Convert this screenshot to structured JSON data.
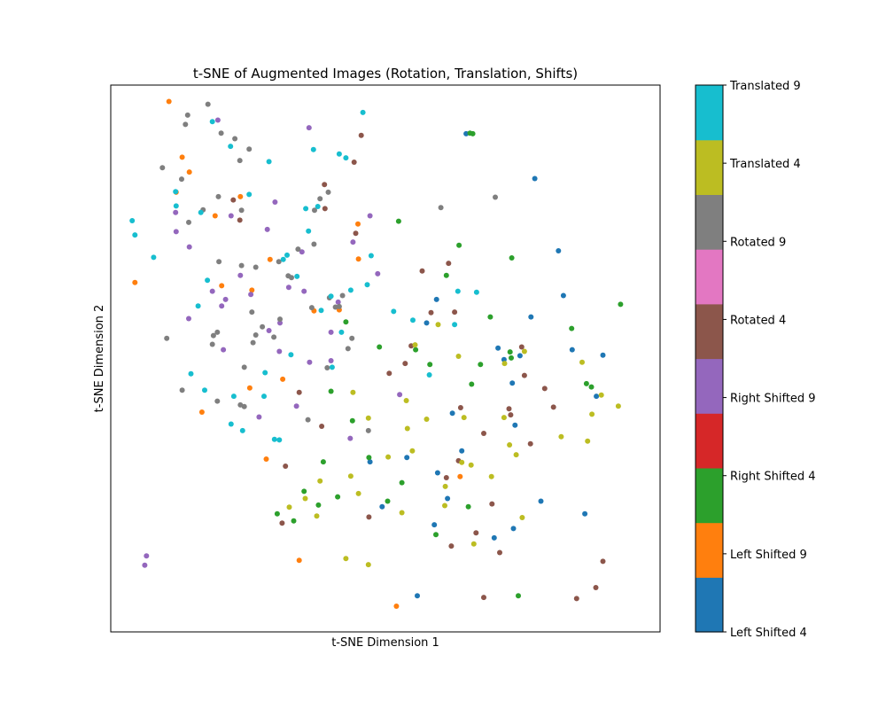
{
  "chart_data": {
    "type": "scatter",
    "title": "t-SNE of Augmented Images (Rotation, Translation, Shifts)",
    "xlabel": "t-SNE Dimension 1",
    "ylabel": "t-SNE Dimension 2",
    "xlim": [
      0,
      100
    ],
    "ylim": [
      0,
      100
    ],
    "x_ticks_visible": false,
    "y_ticks_visible": false,
    "grid": false,
    "colorbar": {
      "labels": [
        "Left Shifted 4",
        "Left Shifted 9",
        "Right Shifted 4",
        "Right Shifted 9",
        "Rotated 4",
        "Rotated 9",
        "Translated 4",
        "Translated 9"
      ],
      "colors": [
        "#1f77b4",
        "#ff7f0e",
        "#2ca02c",
        "#d62728",
        "#9467bd",
        "#8c564b",
        "#e377c2",
        "#7f7f7f",
        "#bcbd22",
        "#17becf"
      ]
    },
    "series": [
      {
        "name": "Left Shifted 4",
        "color": "#1f77b4",
        "x": [
          64.7,
          77.2,
          81.5,
          82.4,
          76.5,
          84.0,
          89.6,
          71.6,
          88.4,
          74.5,
          59.3,
          57.5,
          70.5,
          62.2,
          73.1,
          73.6,
          63.9,
          53.9,
          59.5,
          47.2,
          61.3,
          78.3,
          86.3,
          69.8,
          73.3,
          58.9,
          49.4,
          55.8
        ],
        "y": [
          91.1,
          82.9,
          69.7,
          61.5,
          57.6,
          51.6,
          50.6,
          49.8,
          43.1,
          50.5,
          60.8,
          56.5,
          51.9,
          40.0,
          45.5,
          37.8,
          33.1,
          31.9,
          29.1,
          31.1,
          24.4,
          23.9,
          21.6,
          17.2,
          18.9,
          19.6,
          22.9,
          6.6
        ]
      },
      {
        "name": "Left Shifted 9",
        "color": "#ff7f0e",
        "x": [
          4.4,
          13.0,
          20.2,
          19.0,
          23.6,
          45.0,
          29.0,
          14.3,
          11.9,
          25.7,
          31.3,
          41.6,
          37.0,
          25.3,
          10.6,
          16.6,
          28.3,
          45.1,
          63.6,
          34.3,
          52.0
        ],
        "y": [
          63.9,
          86.8,
          63.3,
          76.1,
          79.6,
          74.6,
          68.1,
          84.1,
          80.4,
          62.5,
          46.2,
          58.9,
          58.7,
          44.6,
          97.0,
          40.2,
          31.6,
          68.2,
          28.4,
          13.1,
          4.7
        ]
      },
      {
        "name": "Right Shifted 4",
        "color": "#2ca02c",
        "x": [
          65.9,
          52.4,
          65.4,
          63.4,
          73.0,
          61.1,
          92.8,
          69.1,
          55.5,
          48.9,
          40.1,
          42.8,
          72.7,
          83.9,
          72.9,
          86.6,
          65.7,
          67.3,
          87.5,
          58.1,
          44.0,
          35.2,
          38.7,
          53.0,
          37.8,
          47.0,
          30.3,
          33.3,
          50.4,
          74.2,
          65.1,
          59.2,
          41.3
        ],
        "y": [
          91.1,
          75.1,
          91.2,
          70.7,
          68.4,
          65.2,
          59.9,
          57.6,
          51.6,
          52.1,
          44.0,
          56.7,
          51.2,
          55.5,
          50.1,
          45.4,
          45.3,
          48.9,
          44.8,
          48.9,
          38.6,
          25.7,
          31.1,
          27.3,
          23.2,
          31.9,
          21.6,
          20.3,
          23.9,
          6.6,
          22.9,
          17.8,
          24.7
        ]
      },
      {
        "name": "Right Shifted 9",
        "color": "#9467bd",
        "x": [
          6.5,
          6.2,
          11.9,
          21.9,
          14.3,
          20.9,
          19.5,
          34.8,
          28.5,
          35.2,
          29.9,
          41.4,
          48.6,
          11.8,
          14.2,
          25.5,
          32.4,
          30.8,
          40.1,
          40.1,
          18.5,
          20.2,
          28.8,
          47.2,
          36.2,
          52.6,
          33.8,
          36.1,
          23.6,
          44.1,
          43.6,
          27.0,
          20.5,
          30.7
        ],
        "y": [
          13.9,
          12.2,
          73.2,
          76.1,
          70.4,
          60.8,
          93.6,
          69.5,
          73.6,
          62.3,
          78.6,
          60.3,
          65.5,
          76.7,
          57.3,
          61.7,
          63.0,
          56.5,
          54.8,
          49.6,
          62.3,
          59.6,
          55.1,
          76.1,
          49.3,
          43.4,
          41.3,
          92.2,
          65.2,
          71.3,
          35.4,
          39.3,
          51.6,
          51.3
        ]
      },
      {
        "name": "Rotated 4",
        "color": "#8c564b",
        "x": [
          22.3,
          23.5,
          44.3,
          45.6,
          38.9,
          39.0,
          44.6,
          56.7,
          54.7,
          62.6,
          61.5,
          58.3,
          74.8,
          79.0,
          80.6,
          75.3,
          63.7,
          72.5,
          67.9,
          53.6,
          50.7,
          38.4,
          34.3,
          47.0,
          31.2,
          31.8,
          61.1,
          69.4,
          62.0,
          67.9,
          84.8,
          88.3,
          89.6,
          72.8,
          76.4,
          66.5,
          70.8,
          63.3
        ],
        "y": [
          79.0,
          75.3,
          85.9,
          90.8,
          81.8,
          77.4,
          72.9,
          66.0,
          52.3,
          58.5,
          67.4,
          58.4,
          52.1,
          44.5,
          41.1,
          46.9,
          41.0,
          40.8,
          36.3,
          49.1,
          47.3,
          37.6,
          43.8,
          21.0,
          19.9,
          30.3,
          28.2,
          23.4,
          15.7,
          6.3,
          6.1,
          8.1,
          12.9,
          39.7,
          34.4,
          18.1,
          14.5,
          31.3
        ]
      },
      {
        "name": "Rotated 9",
        "color": "#7f7f7f",
        "x": [
          14.0,
          17.7,
          13.6,
          20.1,
          22.6,
          23.5,
          25.2,
          19.6,
          23.8,
          16.8,
          12.9,
          9.4,
          10.2,
          18.7,
          19.4,
          24.3,
          26.4,
          25.7,
          30.8,
          27.6,
          25.9,
          23.6,
          19.4,
          18.5,
          32.9,
          36.6,
          37.1,
          38.1,
          39.6,
          34.1,
          37.0,
          32.3,
          26.4,
          29.7,
          39.8,
          41.6,
          42.2,
          43.2,
          39.4,
          43.9,
          40.9,
          23.8,
          30.6,
          19.7,
          14.2,
          13.0,
          24.3,
          35.9,
          46.9,
          60.1,
          70.0
        ],
        "y": [
          94.5,
          96.5,
          92.8,
          91.2,
          90.2,
          86.2,
          88.3,
          79.6,
          77.1,
          77.2,
          82.8,
          84.9,
          53.7,
          54.2,
          54.8,
          48.4,
          54.3,
          58.5,
          57.2,
          55.8,
          52.9,
          41.5,
          42.2,
          52.6,
          64.8,
          59.3,
          77.1,
          79.2,
          80.4,
          70.0,
          70.9,
          65.1,
          66.7,
          53.9,
          61.1,
          59.5,
          61.5,
          51.8,
          48.3,
          53.7,
          59.4,
          67.0,
          67.7,
          67.7,
          74.9,
          44.2,
          41.2,
          38.8,
          36.8,
          77.6,
          79.5
        ]
      },
      {
        "name": "Translated 4",
        "color": "#bcbd22",
        "x": [
          72.6,
          69.3,
          63.9,
          65.6,
          71.6,
          92.4,
          82.0,
          86.8,
          87.6,
          85.8,
          71.7,
          75.3,
          60.9,
          54.9,
          60.8,
          53.0,
          45.1,
          43.7,
          54.0,
          50.5,
          53.8,
          55.4,
          59.6,
          46.9,
          42.8,
          37.5,
          35.4,
          32.5,
          38.1,
          57.5,
          46.9,
          44.1,
          64.3,
          63.3,
          74.9,
          73.8,
          89.3,
          66.1
        ],
        "y": [
          34.2,
          28.4,
          31.0,
          30.5,
          39.2,
          41.3,
          35.7,
          34.9,
          39.8,
          49.3,
          49.1,
          51.3,
          26.6,
          33.1,
          23.1,
          21.8,
          25.3,
          28.5,
          37.2,
          32.0,
          42.3,
          52.5,
          56.2,
          12.3,
          13.4,
          21.2,
          24.4,
          22.8,
          27.6,
          38.9,
          39.1,
          43.8,
          39.2,
          50.4,
          20.9,
          32.4,
          43.3,
          16.1
        ]
      },
      {
        "name": "Translated 9",
        "color": "#17becf",
        "x": [
          3.9,
          4.4,
          7.8,
          11.8,
          11.9,
          16.4,
          17.6,
          15.9,
          18.5,
          21.8,
          25.2,
          28.8,
          35.5,
          36.0,
          32.1,
          33.9,
          31.4,
          40.1,
          38.3,
          42.0,
          40.3,
          47.4,
          43.7,
          46.7,
          51.5,
          55.0,
          58.0,
          62.6,
          63.2,
          66.6,
          45.9,
          42.8,
          41.6,
          36.9,
          37.7,
          32.8,
          28.1,
          29.8,
          21.9,
          24.0,
          22.4,
          14.6,
          17.1,
          27.9,
          30.7
        ],
        "y": [
          75.2,
          72.6,
          68.5,
          80.5,
          77.9,
          76.7,
          64.3,
          59.6,
          93.3,
          88.8,
          80.0,
          86.0,
          77.4,
          73.3,
          68.9,
          65.0,
          68.1,
          61.4,
          58.8,
          54.8,
          48.4,
          68.8,
          62.5,
          63.5,
          58.6,
          57.0,
          47.0,
          56.2,
          62.3,
          62.1,
          95.0,
          86.7,
          87.4,
          88.2,
          77.8,
          50.7,
          47.4,
          35.2,
          38.0,
          36.8,
          43.1,
          47.2,
          44.2,
          43.1,
          35.1
        ]
      }
    ]
  }
}
